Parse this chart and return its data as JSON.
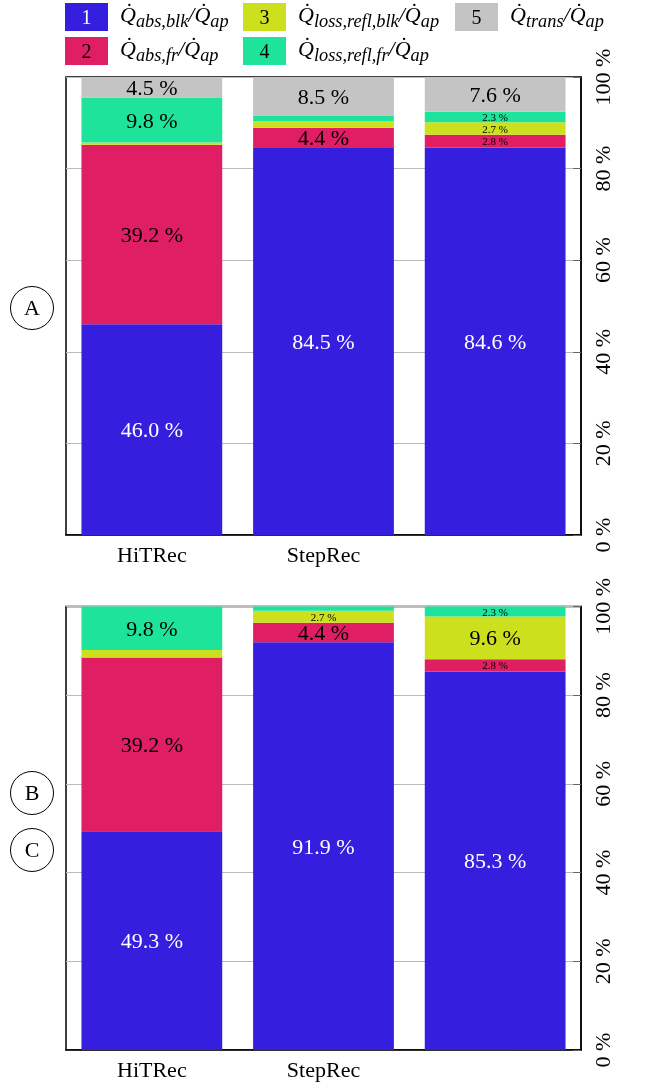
{
  "chart_data": [
    {
      "type": "bar",
      "stacked": true,
      "legend": "top",
      "grid": "y",
      "categories": [
        "HiTRec",
        "StepRec",
        null
      ],
      "ylim": [
        0,
        100
      ],
      "yticks": [
        {
          "value": 0,
          "label": "0 %"
        },
        {
          "value": 20,
          "label": "20 %"
        },
        {
          "value": 40,
          "label": "40 %"
        },
        {
          "value": 60,
          "label": "60 %"
        },
        {
          "value": 80,
          "label": "80 %"
        },
        {
          "value": 100,
          "label": "100 %"
        }
      ],
      "annotations": [
        "1",
        "2",
        "3",
        "4",
        "5",
        "A"
      ],
      "series": [
        {
          "name": "Q̇$_{abs,blk}$/Q̇$_{ap}$",
          "color": "#351ede",
          "values": [
            46.0,
            84.5,
            84.6
          ],
          "value_labels": [
            "46.0 %",
            "84.5 %",
            "84.6 %"
          ]
        },
        {
          "name": "Q̇$_{abs,fr}$/Q̇$_{ap}$",
          "color": "#e01e64",
          "values": [
            39.2,
            4.4,
            2.8
          ],
          "value_labels": [
            "39.2 %",
            "4.4 %",
            "2.8 %"
          ]
        },
        {
          "name": "Q̇$_{loss,refl,blk}$/Q̇$_{ap}$",
          "color": "#cce01e",
          "values": [
            0.5,
            1.5,
            2.7
          ],
          "value_labels": [
            null,
            null,
            "2.7 %"
          ]
        },
        {
          "name": "Q̇$_{loss,refl,fr}$/Q̇$_{ap}$",
          "color": "#1ee39a",
          "values": [
            9.8,
            1.1,
            2.3
          ],
          "value_labels": [
            "9.8 %",
            null,
            "2.3 %"
          ]
        },
        {
          "name": "Q̇$_{trans}$/Q̇$_{ap}$",
          "color": "#c4c4c4",
          "values": [
            4.5,
            8.5,
            7.6
          ],
          "value_labels": [
            "4.5 %",
            "8.5 %",
            "7.6 %"
          ]
        }
      ]
    },
    {
      "type": "bar",
      "stacked": true,
      "grid": "y",
      "categories": [
        "HiTRec",
        "StepRec",
        null
      ],
      "ylim": [
        0,
        100
      ],
      "yticks": [
        {
          "value": 0,
          "label": "0 %"
        },
        {
          "value": 20,
          "label": "20 %"
        },
        {
          "value": 40,
          "label": "40 %"
        },
        {
          "value": 60,
          "label": "60 %"
        },
        {
          "value": 80,
          "label": "80 %"
        },
        {
          "value": 100,
          "label": "100 %"
        }
      ],
      "annotations": [
        "B",
        "C"
      ],
      "series": [
        {
          "color": "#351ede",
          "values": [
            49.3,
            91.9,
            85.3
          ],
          "value_labels": [
            "49.3 %",
            "91.9 %",
            "85.3 %"
          ]
        },
        {
          "color": "#e01e64",
          "values": [
            39.2,
            4.4,
            2.8
          ],
          "value_labels": [
            "39.2 %",
            "4.4 %",
            "2.8 %"
          ]
        },
        {
          "color": "#cce01e",
          "values": [
            1.7,
            2.7,
            9.6
          ],
          "value_labels": [
            null,
            "2.7 %",
            "9.6 %"
          ]
        },
        {
          "color": "#1ee39a",
          "values": [
            9.8,
            1.0,
            2.3
          ],
          "value_labels": [
            "9.8 %",
            null,
            "2.3 %"
          ]
        }
      ]
    }
  ]
}
